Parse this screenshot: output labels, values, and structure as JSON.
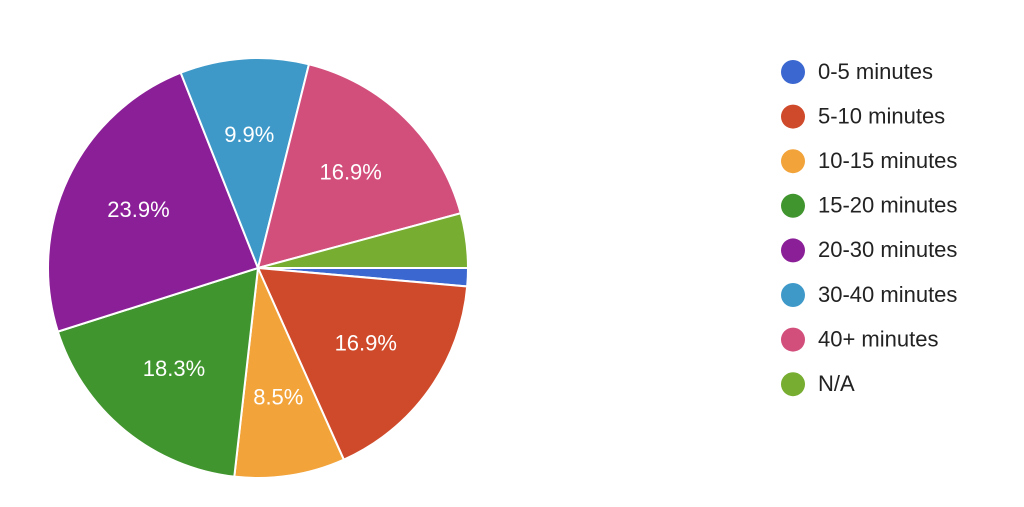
{
  "chart_data": {
    "type": "pie",
    "categories": [
      "0-5 minutes",
      "5-10 minutes",
      "10-15 minutes",
      "15-20 minutes",
      "20-30 minutes",
      "30-40 minutes",
      "40+ minutes",
      "N/A"
    ],
    "values": [
      1.4,
      16.9,
      8.5,
      18.3,
      23.9,
      9.9,
      16.9,
      4.2
    ],
    "value_labels": [
      null,
      "16.9%",
      "8.5%",
      "18.3%",
      "23.9%",
      "9.9%",
      "16.9%",
      null
    ],
    "colors": [
      "#3b67d0",
      "#cf4a2a",
      "#f2a33a",
      "#41952f",
      "#8b1f98",
      "#3e99c9",
      "#d24f7c",
      "#77ad30"
    ],
    "legend": "right"
  }
}
